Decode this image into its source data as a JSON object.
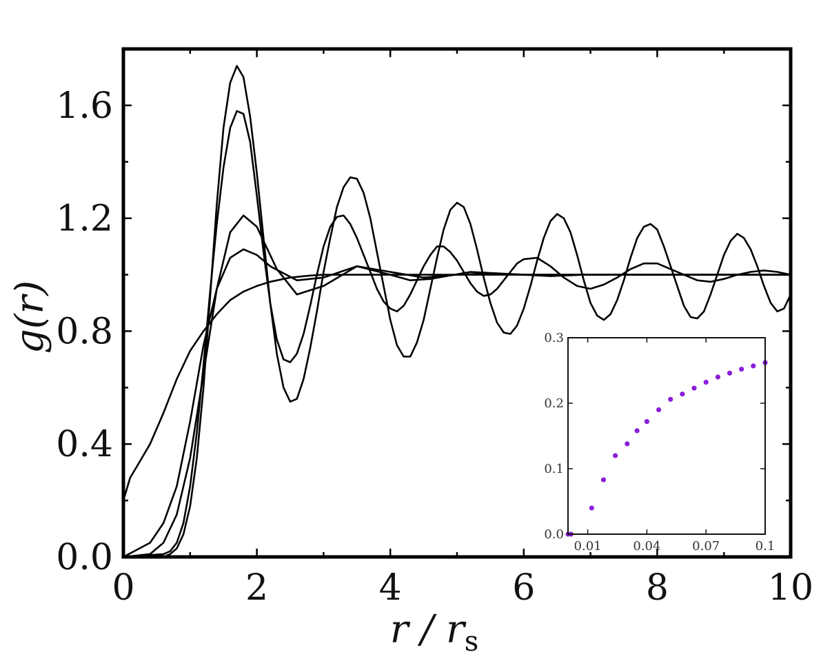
{
  "chart_data": [
    {
      "type": "line",
      "title": "",
      "xlabel": "r / r",
      "xlabel_subscript": "s",
      "ylabel": "g(r)",
      "xlim": [
        0,
        10
      ],
      "ylim": [
        0,
        1.8
      ],
      "x_ticks": [
        0,
        2,
        4,
        6,
        8,
        10
      ],
      "x_tick_labels": [
        "0",
        "2",
        "4",
        "6",
        "8",
        "10"
      ],
      "y_ticks": [
        0,
        0.4,
        0.8,
        1.2,
        1.6
      ],
      "y_tick_labels": [
        "0.0",
        "0.4",
        "0.8",
        "1.2",
        "1.6"
      ],
      "grid": false,
      "line_color": "#000000",
      "series": [
        {
          "x": [
            0,
            0.1,
            0.2,
            0.4,
            0.6,
            0.8,
            1.0,
            1.2,
            1.4,
            1.6,
            1.8,
            2.0,
            2.2,
            2.5,
            2.8,
            3.0,
            3.5,
            4.0,
            5.0,
            6.0,
            7.0,
            8.0,
            9.0,
            10.0
          ],
          "y": [
            0.2,
            0.28,
            0.32,
            0.4,
            0.51,
            0.63,
            0.73,
            0.8,
            0.86,
            0.91,
            0.94,
            0.96,
            0.975,
            0.99,
            0.997,
            1.0,
            1.0,
            1.0,
            1.0,
            1.0,
            1.0,
            1.0,
            1.0,
            1.0
          ]
        },
        {
          "x": [
            0,
            0.4,
            0.6,
            0.8,
            1.0,
            1.2,
            1.4,
            1.6,
            1.8,
            2.0,
            2.2,
            2.6,
            3.0,
            3.5,
            4.0,
            4.5,
            5.0,
            5.5,
            6.0,
            7.0,
            8.0,
            9.0,
            10.0
          ],
          "y": [
            0,
            0.05,
            0.12,
            0.25,
            0.48,
            0.75,
            0.95,
            1.06,
            1.09,
            1.07,
            1.03,
            0.98,
            0.99,
            1.03,
            1.01,
            0.99,
            1.0,
            1.005,
            1.0,
            1.0,
            1.0,
            1.0,
            1.0
          ]
        },
        {
          "x": [
            0,
            0.4,
            0.6,
            0.8,
            1.0,
            1.2,
            1.4,
            1.6,
            1.8,
            2.0,
            2.3,
            2.6,
            3.0,
            3.5,
            4.0,
            4.3,
            4.6,
            5.2,
            5.6,
            6.0,
            6.4,
            6.9,
            7.5,
            8.0,
            8.6,
            9.2,
            10.0
          ],
          "y": [
            0,
            0.01,
            0.05,
            0.15,
            0.35,
            0.65,
            0.95,
            1.15,
            1.21,
            1.17,
            1.02,
            0.93,
            0.96,
            1.03,
            1.0,
            0.98,
            0.985,
            1.01,
            1.005,
            1.0,
            0.995,
            1.0,
            1.0,
            1.0,
            1.0,
            1.0,
            1.0
          ]
        },
        {
          "x": [
            0,
            0.6,
            0.7,
            0.8,
            0.9,
            1.0,
            1.1,
            1.2,
            1.3,
            1.4,
            1.5,
            1.6,
            1.7,
            1.8,
            1.9,
            2.0,
            2.1,
            2.2,
            2.3,
            2.4,
            2.5,
            2.6,
            2.7,
            2.8,
            2.9,
            3.0,
            3.1,
            3.2,
            3.3,
            3.4,
            3.5,
            3.6,
            3.7,
            3.8,
            3.9,
            4.0,
            4.1,
            4.2,
            4.3,
            4.4,
            4.5,
            4.6,
            4.7,
            4.8,
            4.9,
            5.0,
            5.1,
            5.2,
            5.3,
            5.4,
            5.5,
            5.6,
            5.7,
            5.8,
            5.9,
            6.0,
            6.2,
            6.4,
            6.6,
            6.8,
            7.0,
            7.2,
            7.4,
            7.6,
            7.8,
            8.0,
            8.2,
            8.4,
            8.6,
            8.8,
            9.0,
            9.2,
            9.4,
            9.6,
            9.8,
            10.0
          ],
          "y": [
            0,
            0.01,
            0.02,
            0.05,
            0.12,
            0.25,
            0.44,
            0.68,
            0.94,
            1.18,
            1.38,
            1.52,
            1.58,
            1.57,
            1.47,
            1.28,
            1.08,
            0.9,
            0.77,
            0.7,
            0.69,
            0.72,
            0.79,
            0.89,
            1.0,
            1.1,
            1.17,
            1.205,
            1.21,
            1.18,
            1.13,
            1.07,
            1.01,
            0.95,
            0.905,
            0.88,
            0.87,
            0.89,
            0.93,
            0.98,
            1.03,
            1.07,
            1.1,
            1.1,
            1.08,
            1.05,
            1.01,
            0.97,
            0.94,
            0.925,
            0.93,
            0.95,
            0.98,
            1.01,
            1.04,
            1.055,
            1.06,
            1.03,
            0.99,
            0.96,
            0.95,
            0.965,
            0.99,
            1.02,
            1.04,
            1.04,
            1.02,
            1.0,
            0.98,
            0.975,
            0.985,
            1.0,
            1.01,
            1.015,
            1.01,
            1.0
          ]
        },
        {
          "x": [
            0,
            0.6,
            0.7,
            0.8,
            0.9,
            1.0,
            1.1,
            1.2,
            1.3,
            1.4,
            1.5,
            1.6,
            1.7,
            1.8,
            1.9,
            2.0,
            2.1,
            2.2,
            2.3,
            2.4,
            2.5,
            2.6,
            2.7,
            2.8,
            2.9,
            3.0,
            3.1,
            3.2,
            3.3,
            3.4,
            3.5,
            3.6,
            3.7,
            3.8,
            3.9,
            4.0,
            4.1,
            4.2,
            4.3,
            4.4,
            4.5,
            4.6,
            4.7,
            4.8,
            4.9,
            5.0,
            5.1,
            5.2,
            5.3,
            5.4,
            5.5,
            5.6,
            5.7,
            5.8,
            5.9,
            6.0,
            6.1,
            6.2,
            6.3,
            6.4,
            6.5,
            6.6,
            6.7,
            6.8,
            6.9,
            7.0,
            7.1,
            7.2,
            7.3,
            7.4,
            7.5,
            7.6,
            7.7,
            7.8,
            7.9,
            8.0,
            8.1,
            8.2,
            8.3,
            8.4,
            8.5,
            8.6,
            8.7,
            8.8,
            8.9,
            9.0,
            9.1,
            9.2,
            9.3,
            9.4,
            9.5,
            9.6,
            9.7,
            9.8,
            9.9,
            10.0
          ],
          "y": [
            0,
            0.0,
            0.01,
            0.03,
            0.08,
            0.18,
            0.35,
            0.6,
            0.92,
            1.25,
            1.52,
            1.68,
            1.74,
            1.7,
            1.56,
            1.36,
            1.13,
            0.9,
            0.72,
            0.6,
            0.55,
            0.56,
            0.63,
            0.74,
            0.87,
            1.01,
            1.13,
            1.24,
            1.31,
            1.345,
            1.34,
            1.29,
            1.2,
            1.08,
            0.96,
            0.84,
            0.75,
            0.71,
            0.71,
            0.76,
            0.84,
            0.95,
            1.06,
            1.16,
            1.23,
            1.255,
            1.24,
            1.18,
            1.09,
            0.99,
            0.9,
            0.83,
            0.795,
            0.79,
            0.82,
            0.88,
            0.96,
            1.05,
            1.13,
            1.19,
            1.215,
            1.2,
            1.15,
            1.07,
            0.98,
            0.9,
            0.855,
            0.84,
            0.86,
            0.91,
            0.98,
            1.06,
            1.13,
            1.17,
            1.18,
            1.16,
            1.1,
            1.03,
            0.96,
            0.89,
            0.85,
            0.845,
            0.87,
            0.93,
            1.0,
            1.07,
            1.12,
            1.145,
            1.13,
            1.09,
            1.03,
            0.96,
            0.9,
            0.87,
            0.88,
            0.93
          ]
        }
      ]
    },
    {
      "type": "scatter",
      "title": "",
      "xlabel": "",
      "ylabel": "",
      "xlim": [
        0.0,
        0.1
      ],
      "ylim": [
        0.0,
        0.3
      ],
      "x_ticks": [
        0.01,
        0.04,
        0.07,
        0.1
      ],
      "x_tick_labels": [
        "0.01",
        "0.04",
        "0.07",
        "0.1"
      ],
      "y_ticks": [
        0.0,
        0.1,
        0.2,
        0.3
      ],
      "y_tick_labels": [
        "0.0",
        "0.1",
        "0.2",
        "0.3"
      ],
      "grid": false,
      "marker_color": "#8a1ed8",
      "x": [
        0.0,
        0.0015,
        0.012,
        0.018,
        0.024,
        0.03,
        0.035,
        0.04,
        0.046,
        0.052,
        0.058,
        0.064,
        0.07,
        0.076,
        0.082,
        0.088,
        0.094,
        0.1
      ],
      "y": [
        0.0,
        0.0,
        0.04,
        0.083,
        0.12,
        0.138,
        0.158,
        0.172,
        0.19,
        0.206,
        0.214,
        0.223,
        0.232,
        0.24,
        0.246,
        0.252,
        0.257,
        0.262
      ]
    }
  ]
}
